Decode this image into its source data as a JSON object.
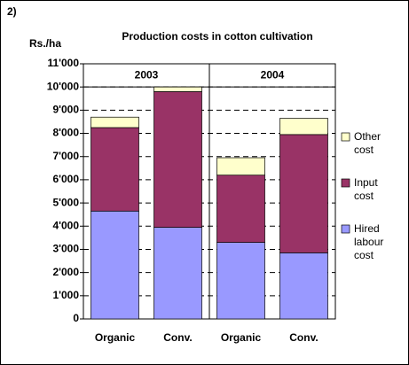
{
  "chart_data": {
    "type": "bar",
    "stacked": true,
    "panel_label": "2)",
    "title": "Production costs in cotton cultivation",
    "y_label": "Rs./ha",
    "groups": [
      "2003",
      "2004"
    ],
    "categories": [
      "Organic",
      "Conv.",
      "Organic",
      "Conv."
    ],
    "series": [
      {
        "name": "Hired labour cost",
        "color": "#9999ff",
        "values": [
          4650,
          3950,
          3300,
          2850
        ]
      },
      {
        "name": "Input cost",
        "color": "#993366",
        "values": [
          3600,
          5850,
          2900,
          5100
        ]
      },
      {
        "name": "Other cost",
        "color": "#ffffcc",
        "values": [
          450,
          200,
          750,
          700
        ]
      }
    ],
    "ylim": [
      0,
      11000
    ],
    "yticks": [
      0,
      {
        "value": 1000,
        "label": "1'000"
      },
      {
        "value": 2000,
        "label": "2'000"
      },
      {
        "value": 3000,
        "label": "3'000"
      },
      {
        "value": 4000,
        "label": "4'000"
      },
      {
        "value": 5000,
        "label": "5'000"
      },
      {
        "value": 6000,
        "label": "6'000"
      },
      {
        "value": 7000,
        "label": "7'000"
      },
      {
        "value": 8000,
        "label": "8'000"
      },
      {
        "value": 9000,
        "label": "9'000"
      },
      {
        "value": 10000,
        "label": "10'000"
      },
      {
        "value": 11000,
        "label": "11'000"
      }
    ],
    "grid": true,
    "legend": "right"
  }
}
